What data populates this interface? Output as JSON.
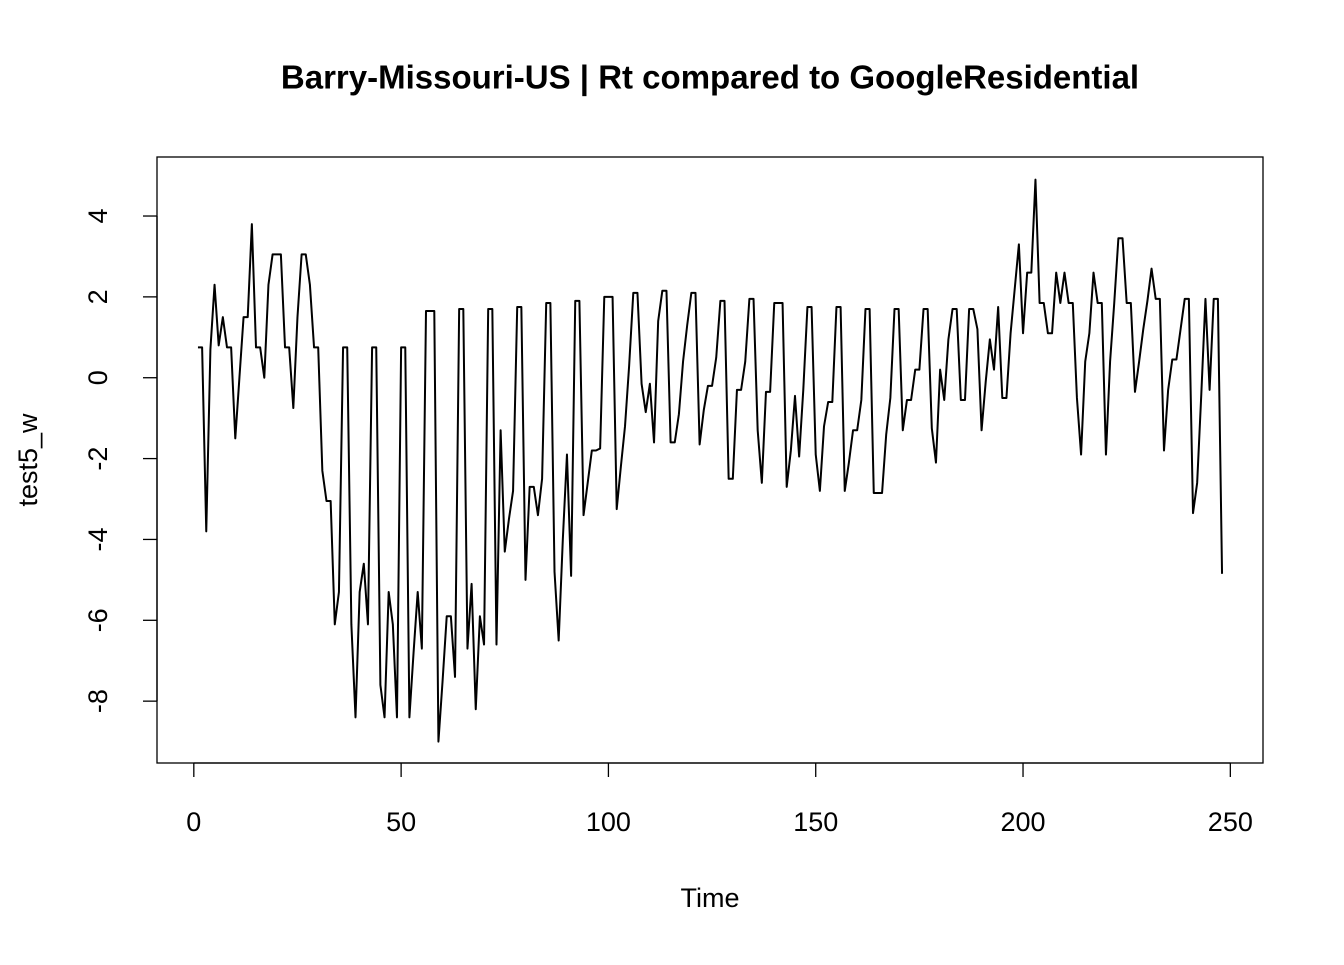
{
  "chart_data": {
    "type": "line",
    "title": "Barry-Missouri-US | Rt compared to GoogleResidential",
    "x_label": "Time",
    "y_label": "test5_w",
    "xlim": [
      -8.88,
      257.88
    ],
    "ylim": [
      -9.53,
      5.46
    ],
    "xticks": [
      0,
      50,
      100,
      150,
      200,
      250
    ],
    "yticks": [
      -8,
      -6,
      -4,
      -2,
      0,
      2,
      4
    ],
    "series": [
      {
        "color": "#000000",
        "x": [
          1,
          2,
          3,
          4,
          5,
          6,
          7,
          8,
          9,
          10,
          11,
          12,
          13,
          14,
          15,
          16,
          17,
          18,
          19,
          20,
          21,
          22,
          23,
          24,
          25,
          26,
          27,
          28,
          29,
          30,
          31,
          32,
          33,
          34,
          35,
          36,
          37,
          38,
          39,
          40,
          41,
          42,
          43,
          44,
          45,
          46,
          47,
          48,
          49,
          50,
          51,
          52,
          53,
          54,
          55,
          56,
          57,
          58,
          59,
          60,
          61,
          62,
          63,
          64,
          65,
          66,
          67,
          68,
          69,
          70,
          71,
          72,
          73,
          74,
          75,
          76,
          77,
          78,
          79,
          80,
          81,
          82,
          83,
          84,
          85,
          86,
          87,
          88,
          89,
          90,
          91,
          92,
          93,
          94,
          95,
          96,
          97,
          98,
          99,
          100,
          101,
          102,
          103,
          104,
          105,
          106,
          107,
          108,
          109,
          110,
          111,
          112,
          113,
          114,
          115,
          116,
          117,
          118,
          119,
          120,
          121,
          122,
          123,
          124,
          125,
          126,
          127,
          128,
          129,
          130,
          131,
          132,
          133,
          134,
          135,
          136,
          137,
          138,
          139,
          140,
          141,
          142,
          143,
          144,
          145,
          146,
          147,
          148,
          149,
          150,
          151,
          152,
          153,
          154,
          155,
          156,
          157,
          158,
          159,
          160,
          161,
          162,
          163,
          164,
          165,
          166,
          167,
          168,
          169,
          170,
          171,
          172,
          173,
          174,
          175,
          176,
          177,
          178,
          179,
          180,
          181,
          182,
          183,
          184,
          185,
          186,
          187,
          188,
          189,
          190,
          191,
          192,
          193,
          194,
          195,
          196,
          197,
          198,
          199,
          200,
          201,
          202,
          203,
          204,
          205,
          206,
          207,
          208,
          209,
          210,
          211,
          212,
          213,
          214,
          215,
          216,
          217,
          218,
          219,
          220,
          221,
          222,
          223,
          224,
          225,
          226,
          227,
          228,
          229,
          230,
          231,
          232,
          233,
          234,
          235,
          236,
          237,
          238,
          239,
          240,
          241,
          242,
          243,
          244,
          245,
          246,
          247,
          248
        ],
        "values": [
          0.75,
          0.75,
          -3.8,
          0.7,
          2.3,
          0.8,
          1.5,
          0.75,
          0.75,
          -1.5,
          0,
          1.5,
          1.5,
          3.8,
          0.75,
          0.75,
          0,
          2.3,
          3.05,
          3.05,
          3.05,
          0.75,
          0.75,
          -0.75,
          1.5,
          3.05,
          3.05,
          2.3,
          0.75,
          0.75,
          -2.3,
          -3.05,
          -3.05,
          -6.1,
          -5.3,
          0.75,
          0.75,
          -6.1,
          -8.4,
          -5.3,
          -4.6,
          -6.1,
          0.75,
          0.75,
          -7.6,
          -8.4,
          -5.3,
          -6.1,
          -8.4,
          0.75,
          0.75,
          -8.4,
          -6.8,
          -5.3,
          -6.7,
          1.65,
          1.65,
          1.65,
          -9.0,
          -7.5,
          -5.9,
          -5.9,
          -7.4,
          1.7,
          1.7,
          -6.7,
          -5.1,
          -8.2,
          -5.9,
          -6.6,
          1.7,
          1.7,
          -6.6,
          -1.3,
          -4.3,
          -3.5,
          -2.8,
          1.75,
          1.75,
          -5.0,
          -2.7,
          -2.7,
          -3.4,
          -2.5,
          1.85,
          1.85,
          -4.8,
          -6.5,
          -4.0,
          -1.9,
          -4.9,
          1.9,
          1.9,
          -3.4,
          -2.6,
          -1.8,
          -1.8,
          -1.75,
          2.0,
          2.0,
          2.0,
          -3.25,
          -2.2,
          -1.2,
          0.3,
          2.1,
          2.1,
          -0.15,
          -0.85,
          -0.15,
          -1.6,
          1.4,
          2.15,
          2.15,
          -1.6,
          -1.6,
          -0.9,
          0.4,
          1.3,
          2.1,
          2.1,
          -1.65,
          -0.8,
          -0.2,
          -0.2,
          0.5,
          1.9,
          1.9,
          -2.5,
          -2.5,
          -0.3,
          -0.3,
          0.4,
          1.95,
          1.95,
          -1.3,
          -2.6,
          -0.35,
          -0.35,
          1.85,
          1.85,
          1.85,
          -2.7,
          -1.8,
          -0.45,
          -1.95,
          -0.3,
          1.75,
          1.75,
          -1.9,
          -2.8,
          -1.2,
          -0.6,
          -0.6,
          1.75,
          1.75,
          -2.8,
          -2.1,
          -1.3,
          -1.3,
          -0.55,
          1.7,
          1.7,
          -2.85,
          -2.85,
          -2.85,
          -1.4,
          -0.5,
          1.7,
          1.7,
          -1.3,
          -0.55,
          -0.55,
          0.2,
          0.2,
          1.7,
          1.7,
          -1.25,
          -2.1,
          0.2,
          -0.55,
          0.95,
          1.7,
          1.7,
          -0.55,
          -0.55,
          1.7,
          1.7,
          1.2,
          -1.3,
          -0.1,
          0.95,
          0.2,
          1.75,
          -0.5,
          -0.5,
          1.1,
          2.2,
          3.3,
          1.1,
          2.6,
          2.6,
          4.9,
          1.85,
          1.85,
          1.1,
          1.1,
          2.6,
          1.85,
          2.6,
          1.85,
          1.85,
          -0.5,
          -1.9,
          0.4,
          1.1,
          2.6,
          1.85,
          1.85,
          -1.9,
          0.4,
          1.85,
          3.45,
          3.45,
          1.85,
          1.85,
          -0.35,
          0.4,
          1.2,
          1.9,
          2.7,
          1.95,
          1.95,
          -1.8,
          -0.3,
          0.45,
          0.45,
          1.2,
          1.95,
          1.95,
          -3.35,
          -2.6,
          -0.4,
          1.95,
          -0.3,
          1.95,
          1.95,
          -4.85
        ]
      }
    ]
  }
}
